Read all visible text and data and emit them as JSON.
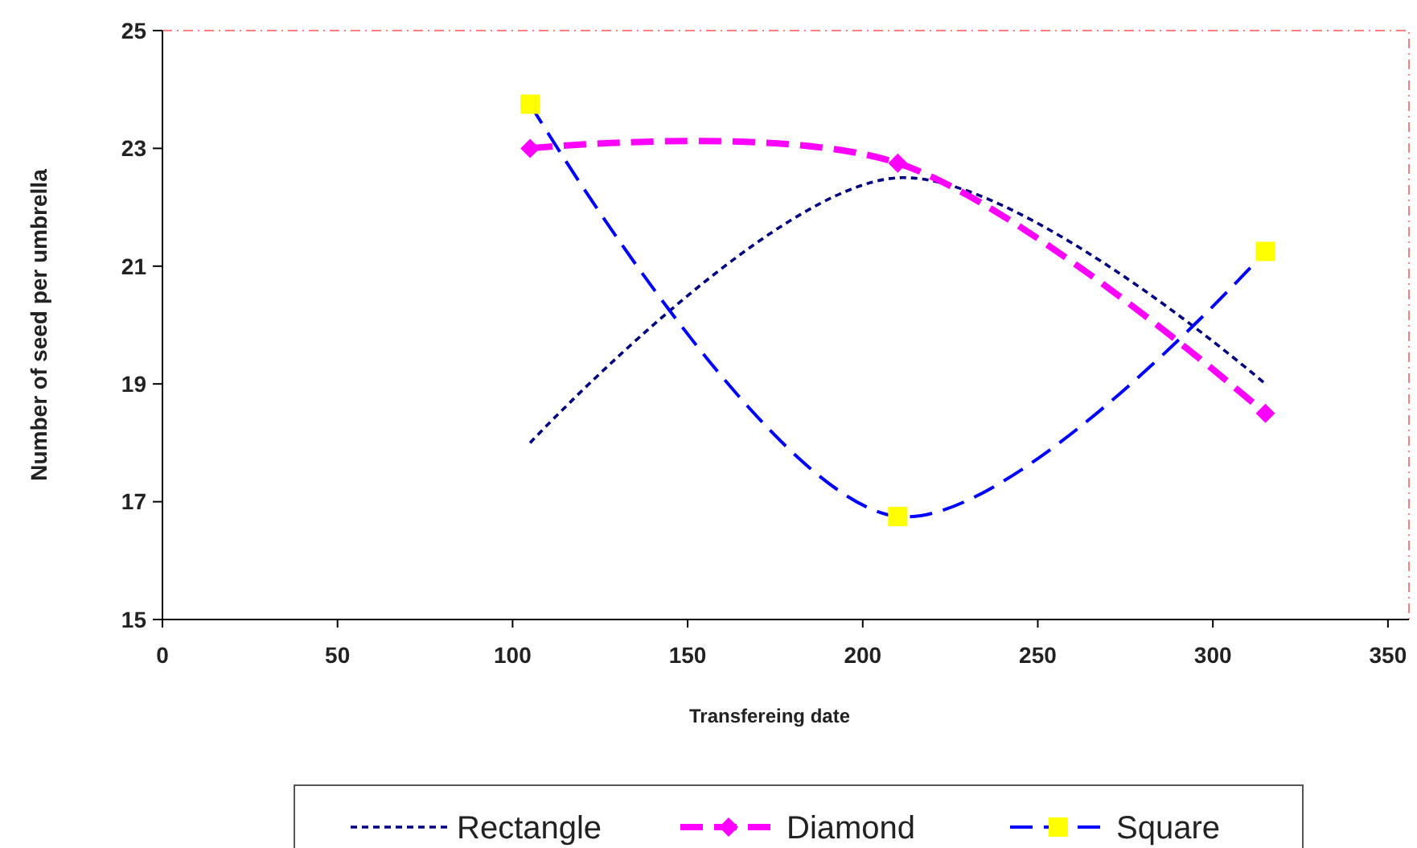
{
  "chart_data": {
    "type": "line",
    "xlabel": "Transfereing date",
    "ylabel": "Number of seed per umbrella",
    "xlim": [
      0,
      356
    ],
    "xticks": [
      0,
      50,
      100,
      150,
      200,
      250,
      300,
      350
    ],
    "ylim": [
      15,
      25
    ],
    "yticks": [
      15,
      17,
      19,
      21,
      23,
      25
    ],
    "grid": false,
    "legend": "bottom",
    "series": [
      {
        "name": "Rectangle",
        "color": "#000080",
        "x": [
          105,
          210,
          315
        ],
        "values": [
          18,
          22.5,
          19
        ],
        "line_style": "dotted"
      },
      {
        "name": "Diamond",
        "color": "#ff00ff",
        "x": [
          105,
          210,
          315
        ],
        "values": [
          23,
          22.75,
          18.5
        ],
        "marker": "diamond",
        "line_style": "dashed"
      },
      {
        "name": "Square",
        "color": "#0000ff",
        "colors": [
          "#ffff00",
          "#ffff00",
          "#ffff00"
        ],
        "x": [
          105,
          210,
          315
        ],
        "values": [
          23.75,
          16.75,
          21.25
        ],
        "marker": "square",
        "line_style": "dashed"
      }
    ]
  }
}
